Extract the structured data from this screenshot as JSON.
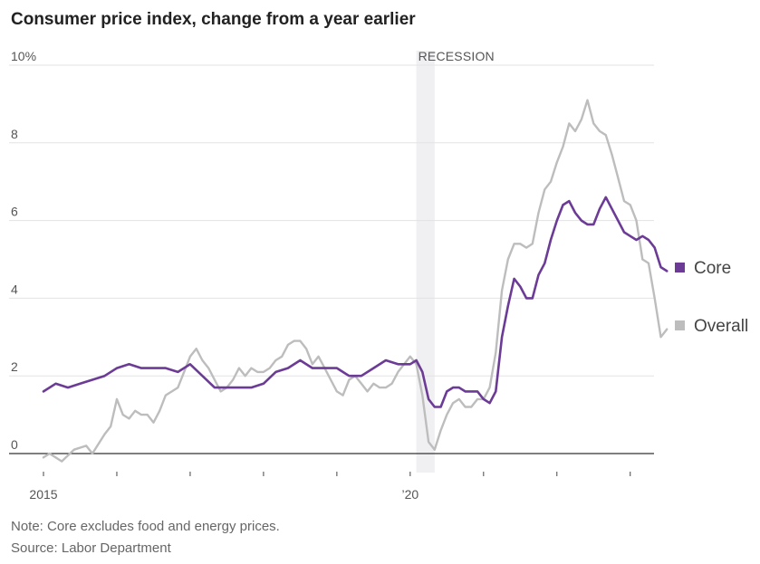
{
  "chart_data": {
    "type": "line",
    "title": "Consumer price index, change from a year earlier",
    "unit": "%",
    "x_tick_labels": [
      "2015",
      "’20"
    ],
    "y_ticks": [
      0,
      2,
      4,
      6,
      8,
      10
    ],
    "y_tick_labels": [
      "0",
      "2",
      "4",
      "6",
      "8",
      "10%"
    ],
    "ylim": [
      0,
      10
    ],
    "xlim": [
      "2015-01",
      "2023-04"
    ],
    "x_ticks_years": [
      2015,
      2016,
      2017,
      2018,
      2019,
      2020,
      2021,
      2022,
      2023
    ],
    "grid": true,
    "legend_position": "right",
    "recession": {
      "label": "RECESSION",
      "start": "2020-02",
      "end": "2020-04"
    },
    "series": [
      {
        "name": "Core",
        "color": "#6b3b96",
        "points": [
          [
            "2015-01",
            1.6
          ],
          [
            "2015-03",
            1.8
          ],
          [
            "2015-05",
            1.7
          ],
          [
            "2015-07",
            1.8
          ],
          [
            "2015-09",
            1.9
          ],
          [
            "2015-11",
            2.0
          ],
          [
            "2016-01",
            2.2
          ],
          [
            "2016-03",
            2.3
          ],
          [
            "2016-05",
            2.2
          ],
          [
            "2016-07",
            2.2
          ],
          [
            "2016-09",
            2.2
          ],
          [
            "2016-11",
            2.1
          ],
          [
            "2017-01",
            2.3
          ],
          [
            "2017-03",
            2.0
          ],
          [
            "2017-05",
            1.7
          ],
          [
            "2017-07",
            1.7
          ],
          [
            "2017-09",
            1.7
          ],
          [
            "2017-11",
            1.7
          ],
          [
            "2018-01",
            1.8
          ],
          [
            "2018-03",
            2.1
          ],
          [
            "2018-05",
            2.2
          ],
          [
            "2018-07",
            2.4
          ],
          [
            "2018-09",
            2.2
          ],
          [
            "2018-11",
            2.2
          ],
          [
            "2019-01",
            2.2
          ],
          [
            "2019-03",
            2.0
          ],
          [
            "2019-05",
            2.0
          ],
          [
            "2019-07",
            2.2
          ],
          [
            "2019-09",
            2.4
          ],
          [
            "2019-11",
            2.3
          ],
          [
            "2020-01",
            2.3
          ],
          [
            "2020-02",
            2.4
          ],
          [
            "2020-03",
            2.1
          ],
          [
            "2020-04",
            1.4
          ],
          [
            "2020-05",
            1.2
          ],
          [
            "2020-06",
            1.2
          ],
          [
            "2020-07",
            1.6
          ],
          [
            "2020-08",
            1.7
          ],
          [
            "2020-09",
            1.7
          ],
          [
            "2020-10",
            1.6
          ],
          [
            "2020-11",
            1.6
          ],
          [
            "2020-12",
            1.6
          ],
          [
            "2021-01",
            1.4
          ],
          [
            "2021-02",
            1.3
          ],
          [
            "2021-03",
            1.6
          ],
          [
            "2021-04",
            3.0
          ],
          [
            "2021-05",
            3.8
          ],
          [
            "2021-06",
            4.5
          ],
          [
            "2021-07",
            4.3
          ],
          [
            "2021-08",
            4.0
          ],
          [
            "2021-09",
            4.0
          ],
          [
            "2021-10",
            4.6
          ],
          [
            "2021-11",
            4.9
          ],
          [
            "2021-12",
            5.5
          ],
          [
            "2022-01",
            6.0
          ],
          [
            "2022-02",
            6.4
          ],
          [
            "2022-03",
            6.5
          ],
          [
            "2022-04",
            6.2
          ],
          [
            "2022-05",
            6.0
          ],
          [
            "2022-06",
            5.9
          ],
          [
            "2022-07",
            5.9
          ],
          [
            "2022-08",
            6.3
          ],
          [
            "2022-09",
            6.6
          ],
          [
            "2022-10",
            6.3
          ],
          [
            "2022-11",
            6.0
          ],
          [
            "2022-12",
            5.7
          ],
          [
            "2023-01",
            5.6
          ],
          [
            "2023-02",
            5.5
          ],
          [
            "2023-03",
            5.6
          ],
          [
            "2023-04",
            5.5
          ],
          [
            "2023-05",
            5.3
          ],
          [
            "2023-06",
            4.8
          ],
          [
            "2023-07",
            4.7
          ]
        ]
      },
      {
        "name": "Overall",
        "color": "#bdbdbd",
        "points": [
          [
            "2015-01",
            -0.1
          ],
          [
            "2015-02",
            0.0
          ],
          [
            "2015-04",
            -0.2
          ],
          [
            "2015-06",
            0.1
          ],
          [
            "2015-08",
            0.2
          ],
          [
            "2015-09",
            0.0
          ],
          [
            "2015-11",
            0.5
          ],
          [
            "2015-12",
            0.7
          ],
          [
            "2016-01",
            1.4
          ],
          [
            "2016-02",
            1.0
          ],
          [
            "2016-03",
            0.9
          ],
          [
            "2016-04",
            1.1
          ],
          [
            "2016-05",
            1.0
          ],
          [
            "2016-06",
            1.0
          ],
          [
            "2016-07",
            0.8
          ],
          [
            "2016-08",
            1.1
          ],
          [
            "2016-09",
            1.5
          ],
          [
            "2016-10",
            1.6
          ],
          [
            "2016-11",
            1.7
          ],
          [
            "2016-12",
            2.1
          ],
          [
            "2017-01",
            2.5
          ],
          [
            "2017-02",
            2.7
          ],
          [
            "2017-03",
            2.4
          ],
          [
            "2017-04",
            2.2
          ],
          [
            "2017-05",
            1.9
          ],
          [
            "2017-06",
            1.6
          ],
          [
            "2017-07",
            1.7
          ],
          [
            "2017-08",
            1.9
          ],
          [
            "2017-09",
            2.2
          ],
          [
            "2017-10",
            2.0
          ],
          [
            "2017-11",
            2.2
          ],
          [
            "2017-12",
            2.1
          ],
          [
            "2018-01",
            2.1
          ],
          [
            "2018-02",
            2.2
          ],
          [
            "2018-03",
            2.4
          ],
          [
            "2018-04",
            2.5
          ],
          [
            "2018-05",
            2.8
          ],
          [
            "2018-06",
            2.9
          ],
          [
            "2018-07",
            2.9
          ],
          [
            "2018-08",
            2.7
          ],
          [
            "2018-09",
            2.3
          ],
          [
            "2018-10",
            2.5
          ],
          [
            "2018-11",
            2.2
          ],
          [
            "2018-12",
            1.9
          ],
          [
            "2019-01",
            1.6
          ],
          [
            "2019-02",
            1.5
          ],
          [
            "2019-03",
            1.9
          ],
          [
            "2019-04",
            2.0
          ],
          [
            "2019-05",
            1.8
          ],
          [
            "2019-06",
            1.6
          ],
          [
            "2019-07",
            1.8
          ],
          [
            "2019-08",
            1.7
          ],
          [
            "2019-09",
            1.7
          ],
          [
            "2019-10",
            1.8
          ],
          [
            "2019-11",
            2.1
          ],
          [
            "2019-12",
            2.3
          ],
          [
            "2020-01",
            2.5
          ],
          [
            "2020-02",
            2.3
          ],
          [
            "2020-03",
            1.5
          ],
          [
            "2020-04",
            0.3
          ],
          [
            "2020-05",
            0.1
          ],
          [
            "2020-06",
            0.6
          ],
          [
            "2020-07",
            1.0
          ],
          [
            "2020-08",
            1.3
          ],
          [
            "2020-09",
            1.4
          ],
          [
            "2020-10",
            1.2
          ],
          [
            "2020-11",
            1.2
          ],
          [
            "2020-12",
            1.4
          ],
          [
            "2021-01",
            1.4
          ],
          [
            "2021-02",
            1.7
          ],
          [
            "2021-03",
            2.6
          ],
          [
            "2021-04",
            4.2
          ],
          [
            "2021-05",
            5.0
          ],
          [
            "2021-06",
            5.4
          ],
          [
            "2021-07",
            5.4
          ],
          [
            "2021-08",
            5.3
          ],
          [
            "2021-09",
            5.4
          ],
          [
            "2021-10",
            6.2
          ],
          [
            "2021-11",
            6.8
          ],
          [
            "2021-12",
            7.0
          ],
          [
            "2022-01",
            7.5
          ],
          [
            "2022-02",
            7.9
          ],
          [
            "2022-03",
            8.5
          ],
          [
            "2022-04",
            8.3
          ],
          [
            "2022-05",
            8.6
          ],
          [
            "2022-06",
            9.1
          ],
          [
            "2022-07",
            8.5
          ],
          [
            "2022-08",
            8.3
          ],
          [
            "2022-09",
            8.2
          ],
          [
            "2022-10",
            7.7
          ],
          [
            "2022-11",
            7.1
          ],
          [
            "2022-12",
            6.5
          ],
          [
            "2023-01",
            6.4
          ],
          [
            "2023-02",
            6.0
          ],
          [
            "2023-03",
            5.0
          ],
          [
            "2023-04",
            4.9
          ],
          [
            "2023-05",
            4.0
          ],
          [
            "2023-06",
            3.0
          ],
          [
            "2023-07",
            3.2
          ]
        ]
      }
    ]
  },
  "footer": {
    "note": "Note: Core excludes food and energy prices.",
    "source": "Source: Labor Department"
  }
}
